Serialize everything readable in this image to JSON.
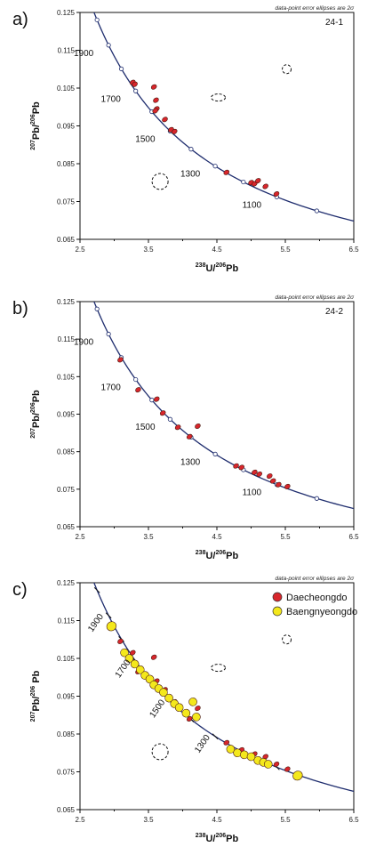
{
  "chart_data": [
    {
      "type": "scatter",
      "panel_label": "a)",
      "sample": "24-1",
      "note": "data-point error ellipses are 2σ",
      "xlabel": {
        "pre": "238",
        "a": "U/",
        "mid": "206",
        "b": "Pb"
      },
      "ylabel": {
        "pre": "207",
        "a": "Pb/",
        "mid": "206",
        "b": "Pb"
      },
      "xlim": [
        2.5,
        6.5
      ],
      "ylim": [
        0.065,
        0.125
      ],
      "xticks": [
        "2.5",
        "3.5",
        "4.5",
        "5.5",
        "6.5"
      ],
      "yticks": [
        "0.065",
        "0.075",
        "0.085",
        "0.095",
        "0.105",
        "0.115",
        "0.125"
      ],
      "concordia_age_labels": [
        "1900",
        "1700",
        "1500",
        "1300",
        "1100"
      ],
      "grid": false,
      "series": [
        {
          "color": "#d8262c",
          "points": [
            {
              "x": 3.27,
              "y": 0.1065
            },
            {
              "x": 3.3,
              "y": 0.106
            },
            {
              "x": 3.58,
              "y": 0.1053
            },
            {
              "x": 3.61,
              "y": 0.1018
            },
            {
              "x": 3.62,
              "y": 0.0995
            },
            {
              "x": 3.6,
              "y": 0.099
            },
            {
              "x": 3.74,
              "y": 0.0967
            },
            {
              "x": 3.83,
              "y": 0.094
            },
            {
              "x": 3.88,
              "y": 0.0935
            },
            {
              "x": 4.64,
              "y": 0.0827
            },
            {
              "x": 5.0,
              "y": 0.08
            },
            {
              "x": 5.05,
              "y": 0.0797
            },
            {
              "x": 5.1,
              "y": 0.0805
            },
            {
              "x": 5.21,
              "y": 0.079
            },
            {
              "x": 5.37,
              "y": 0.077
            }
          ]
        }
      ],
      "dashed_reference_ellipses": [
        {
          "x": 3.67,
          "y": 0.0803
        },
        {
          "x": 4.52,
          "y": 0.1025
        },
        {
          "x": 5.52,
          "y": 0.11
        }
      ]
    },
    {
      "type": "scatter",
      "panel_label": "b)",
      "sample": "24-2",
      "note": "data-point error ellipses are 2σ",
      "xlabel": {
        "pre": "238",
        "a": "U/",
        "mid": "206",
        "b": "Pb"
      },
      "ylabel": {
        "pre": "207",
        "a": "Pb/",
        "mid": "206",
        "b": "Pb"
      },
      "xlim": [
        2.5,
        6.5
      ],
      "ylim": [
        0.065,
        0.125
      ],
      "xticks": [
        "2.5",
        "3.5",
        "4.5",
        "5.5",
        "6.5"
      ],
      "yticks": [
        "0.065",
        "0.075",
        "0.085",
        "0.095",
        "0.105",
        "0.115",
        "0.125"
      ],
      "concordia_age_labels": [
        "1900",
        "1700",
        "1500",
        "1300",
        "1100"
      ],
      "grid": false,
      "series": [
        {
          "color": "#d8262c",
          "points": [
            {
              "x": 3.09,
              "y": 0.1095
            },
            {
              "x": 3.35,
              "y": 0.1015
            },
            {
              "x": 3.62,
              "y": 0.099
            },
            {
              "x": 3.71,
              "y": 0.0953
            },
            {
              "x": 3.93,
              "y": 0.0915
            },
            {
              "x": 4.1,
              "y": 0.089
            },
            {
              "x": 4.22,
              "y": 0.0918
            },
            {
              "x": 4.78,
              "y": 0.0812
            },
            {
              "x": 4.86,
              "y": 0.0808
            },
            {
              "x": 5.05,
              "y": 0.0795
            },
            {
              "x": 5.12,
              "y": 0.079
            },
            {
              "x": 5.27,
              "y": 0.0785
            },
            {
              "x": 5.32,
              "y": 0.0772
            },
            {
              "x": 5.4,
              "y": 0.0762
            },
            {
              "x": 5.53,
              "y": 0.0757
            }
          ]
        }
      ]
    },
    {
      "type": "scatter",
      "panel_label": "c)",
      "note": "data-point error ellipses are 2σ",
      "xlabel": {
        "pre": "238",
        "a": "U/",
        "mid": "206",
        "b": "Pb"
      },
      "ylabel": {
        "pre": "207",
        "a": "Pb/",
        "mid": "206",
        "b": " Pb"
      },
      "xlim": [
        2.5,
        6.5
      ],
      "ylim": [
        0.065,
        0.125
      ],
      "xticks": [
        "2.5",
        "3.5",
        "4.5",
        "5.5",
        "6.5"
      ],
      "yticks": [
        "0.065",
        "0.075",
        "0.085",
        "0.095",
        "0.105",
        "0.115",
        "0.125"
      ],
      "concordia_age_labels": [
        "1900",
        "1700",
        "1500",
        "1300"
      ],
      "grid": false,
      "legend": "top-right",
      "series": [
        {
          "name": "Daecheongdo",
          "color": "#d8262c",
          "points": [
            {
              "x": 3.09,
              "y": 0.1095
            },
            {
              "x": 3.27,
              "y": 0.1065
            },
            {
              "x": 3.35,
              "y": 0.1015
            },
            {
              "x": 3.58,
              "y": 0.1053
            },
            {
              "x": 3.62,
              "y": 0.099
            },
            {
              "x": 3.74,
              "y": 0.0967
            },
            {
              "x": 3.88,
              "y": 0.0935
            },
            {
              "x": 4.1,
              "y": 0.089
            },
            {
              "x": 4.22,
              "y": 0.0918
            },
            {
              "x": 4.64,
              "y": 0.0827
            },
            {
              "x": 4.86,
              "y": 0.0808
            },
            {
              "x": 5.05,
              "y": 0.0797
            },
            {
              "x": 5.21,
              "y": 0.079
            },
            {
              "x": 5.37,
              "y": 0.077
            },
            {
              "x": 5.53,
              "y": 0.0757
            }
          ]
        },
        {
          "name": "Baengnyeongdo",
          "color": "#f4e81c",
          "points": [
            {
              "x": 2.96,
              "y": 0.1135
            },
            {
              "x": 3.15,
              "y": 0.1065
            },
            {
              "x": 3.22,
              "y": 0.105
            },
            {
              "x": 3.3,
              "y": 0.1035
            },
            {
              "x": 3.38,
              "y": 0.102
            },
            {
              "x": 3.45,
              "y": 0.1005
            },
            {
              "x": 3.52,
              "y": 0.0995
            },
            {
              "x": 3.58,
              "y": 0.098
            },
            {
              "x": 3.65,
              "y": 0.097
            },
            {
              "x": 3.72,
              "y": 0.096
            },
            {
              "x": 3.8,
              "y": 0.0945
            },
            {
              "x": 3.88,
              "y": 0.093
            },
            {
              "x": 3.95,
              "y": 0.092
            },
            {
              "x": 4.05,
              "y": 0.0905
            },
            {
              "x": 4.15,
              "y": 0.0935
            },
            {
              "x": 4.2,
              "y": 0.0895
            },
            {
              "x": 4.7,
              "y": 0.081
            },
            {
              "x": 4.8,
              "y": 0.08
            },
            {
              "x": 4.9,
              "y": 0.0795
            },
            {
              "x": 5.0,
              "y": 0.079
            },
            {
              "x": 5.1,
              "y": 0.078
            },
            {
              "x": 5.18,
              "y": 0.0775
            },
            {
              "x": 5.25,
              "y": 0.077
            },
            {
              "x": 5.68,
              "y": 0.074
            }
          ]
        }
      ],
      "dashed_reference_ellipses": [
        {
          "x": 3.67,
          "y": 0.0803
        },
        {
          "x": 4.52,
          "y": 0.1025
        },
        {
          "x": 5.52,
          "y": 0.11
        }
      ]
    }
  ],
  "colors": {
    "concordia": "#1f2d6e",
    "axis": "#111111"
  }
}
